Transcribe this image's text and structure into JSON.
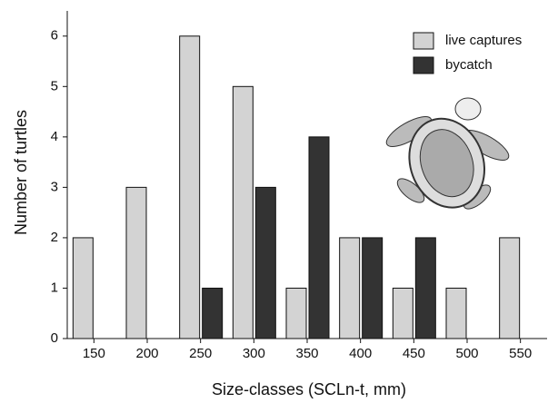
{
  "chart_data": {
    "type": "bar",
    "x_label": "Size-classes (SCLn-t, mm)",
    "y_label": "Number of turtles",
    "categories": [
      "150",
      "200",
      "250",
      "300",
      "350",
      "400",
      "450",
      "500",
      "550"
    ],
    "series": [
      {
        "name": "live captures",
        "color": "#d3d3d3",
        "values": [
          2,
          3,
          6,
          5,
          1,
          2,
          1,
          1,
          2
        ]
      },
      {
        "name": "bycatch",
        "color": "#333333",
        "values": [
          0,
          0,
          1,
          3,
          4,
          2,
          2,
          0,
          0
        ]
      }
    ],
    "ylim": [
      0,
      6.5
    ],
    "yticks": [
      0,
      1,
      2,
      3,
      4,
      5,
      6
    ],
    "legend": "top-right"
  }
}
